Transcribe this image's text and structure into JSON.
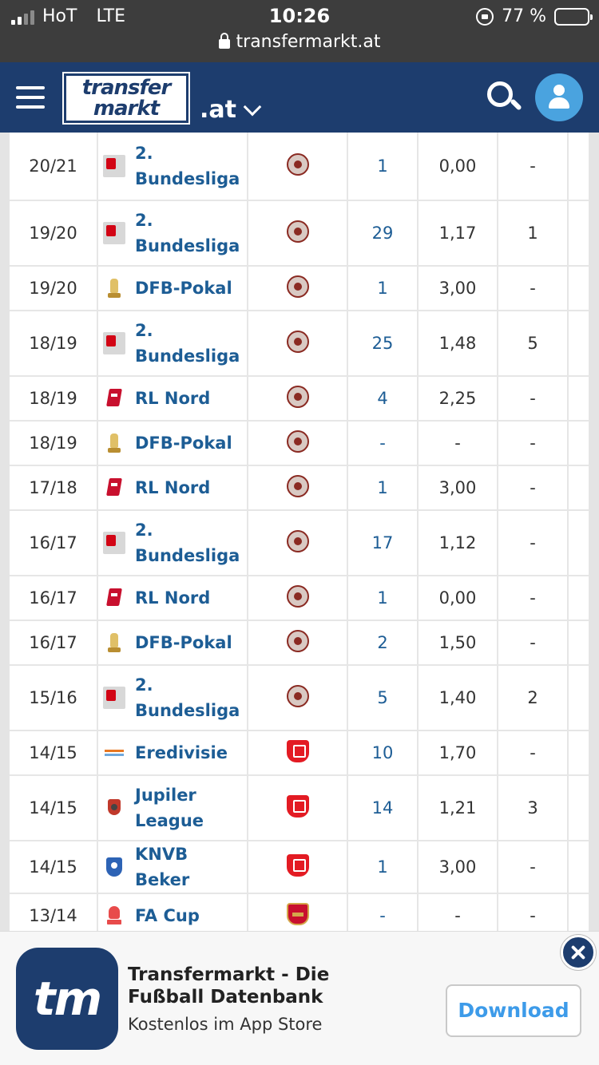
{
  "status_bar": {
    "carrier": "HoT",
    "network": "LTE",
    "time": "10:26",
    "battery": "77 %",
    "url": "transfermarkt.at"
  },
  "header": {
    "logo_line1": "transfer",
    "logo_line2": "markt",
    "tld": ".at"
  },
  "table": {
    "rows": [
      {
        "season": "20/21",
        "competition": [
          "2.",
          "Bundesliga"
        ],
        "comp_icon": "bundesliga-2-icon",
        "club_icon": "st-pauli-crest-icon",
        "apps": "1",
        "ppg": "0,00",
        "goals": "-"
      },
      {
        "season": "19/20",
        "competition": [
          "2.",
          "Bundesliga"
        ],
        "comp_icon": "bundesliga-2-icon",
        "club_icon": "st-pauli-crest-icon",
        "apps": "29",
        "ppg": "1,17",
        "goals": "1"
      },
      {
        "season": "19/20",
        "competition": [
          "DFB-Pokal"
        ],
        "comp_icon": "dfb-pokal-icon",
        "club_icon": "st-pauli-crest-icon",
        "apps": "1",
        "ppg": "3,00",
        "goals": "-"
      },
      {
        "season": "18/19",
        "competition": [
          "2.",
          "Bundesliga"
        ],
        "comp_icon": "bundesliga-2-icon",
        "club_icon": "st-pauli-crest-icon",
        "apps": "25",
        "ppg": "1,48",
        "goals": "5"
      },
      {
        "season": "18/19",
        "competition": [
          "RL Nord"
        ],
        "comp_icon": "rl-nord-icon",
        "club_icon": "st-pauli-crest-icon",
        "apps": "4",
        "ppg": "2,25",
        "goals": "-"
      },
      {
        "season": "18/19",
        "competition": [
          "DFB-Pokal"
        ],
        "comp_icon": "dfb-pokal-icon",
        "club_icon": "st-pauli-crest-icon",
        "apps": "-",
        "ppg": "-",
        "goals": "-"
      },
      {
        "season": "17/18",
        "competition": [
          "RL Nord"
        ],
        "comp_icon": "rl-nord-icon",
        "club_icon": "st-pauli-crest-icon",
        "apps": "1",
        "ppg": "3,00",
        "goals": "-"
      },
      {
        "season": "16/17",
        "competition": [
          "2.",
          "Bundesliga"
        ],
        "comp_icon": "bundesliga-2-icon",
        "club_icon": "st-pauli-crest-icon",
        "apps": "17",
        "ppg": "1,12",
        "goals": "-"
      },
      {
        "season": "16/17",
        "competition": [
          "RL Nord"
        ],
        "comp_icon": "rl-nord-icon",
        "club_icon": "st-pauli-crest-icon",
        "apps": "1",
        "ppg": "0,00",
        "goals": "-"
      },
      {
        "season": "16/17",
        "competition": [
          "DFB-Pokal"
        ],
        "comp_icon": "dfb-pokal-icon",
        "club_icon": "st-pauli-crest-icon",
        "apps": "2",
        "ppg": "1,50",
        "goals": "-"
      },
      {
        "season": "15/16",
        "competition": [
          "2.",
          "Bundesliga"
        ],
        "comp_icon": "bundesliga-2-icon",
        "club_icon": "st-pauli-crest-icon",
        "apps": "5",
        "ppg": "1,40",
        "goals": "2"
      },
      {
        "season": "14/15",
        "competition": [
          "Eredivisie"
        ],
        "comp_icon": "eredivisie-icon",
        "club_icon": "fc-twente-crest-icon",
        "apps": "10",
        "ppg": "1,70",
        "goals": "-"
      },
      {
        "season": "14/15",
        "competition": [
          "Jupiler",
          "League"
        ],
        "comp_icon": "jupiler-league-icon",
        "club_icon": "fc-twente-crest-icon",
        "apps": "14",
        "ppg": "1,21",
        "goals": "3"
      },
      {
        "season": "14/15",
        "competition": [
          "KNVB Beker"
        ],
        "comp_icon": "knvb-beker-icon",
        "club_icon": "fc-twente-crest-icon",
        "apps": "1",
        "ppg": "3,00",
        "goals": "-"
      },
      {
        "season": "13/14",
        "competition": [
          "FA Cup"
        ],
        "comp_icon": "fa-cup-icon",
        "club_icon": "arsenal-crest-icon",
        "apps": "-",
        "ppg": "-",
        "goals": "-"
      }
    ]
  },
  "banner": {
    "app_icon_text": "tm",
    "title": "Transfermarkt - Die Fußball Datenbank",
    "subtitle": "Kostenlos im App Store",
    "download_label": "Download"
  }
}
